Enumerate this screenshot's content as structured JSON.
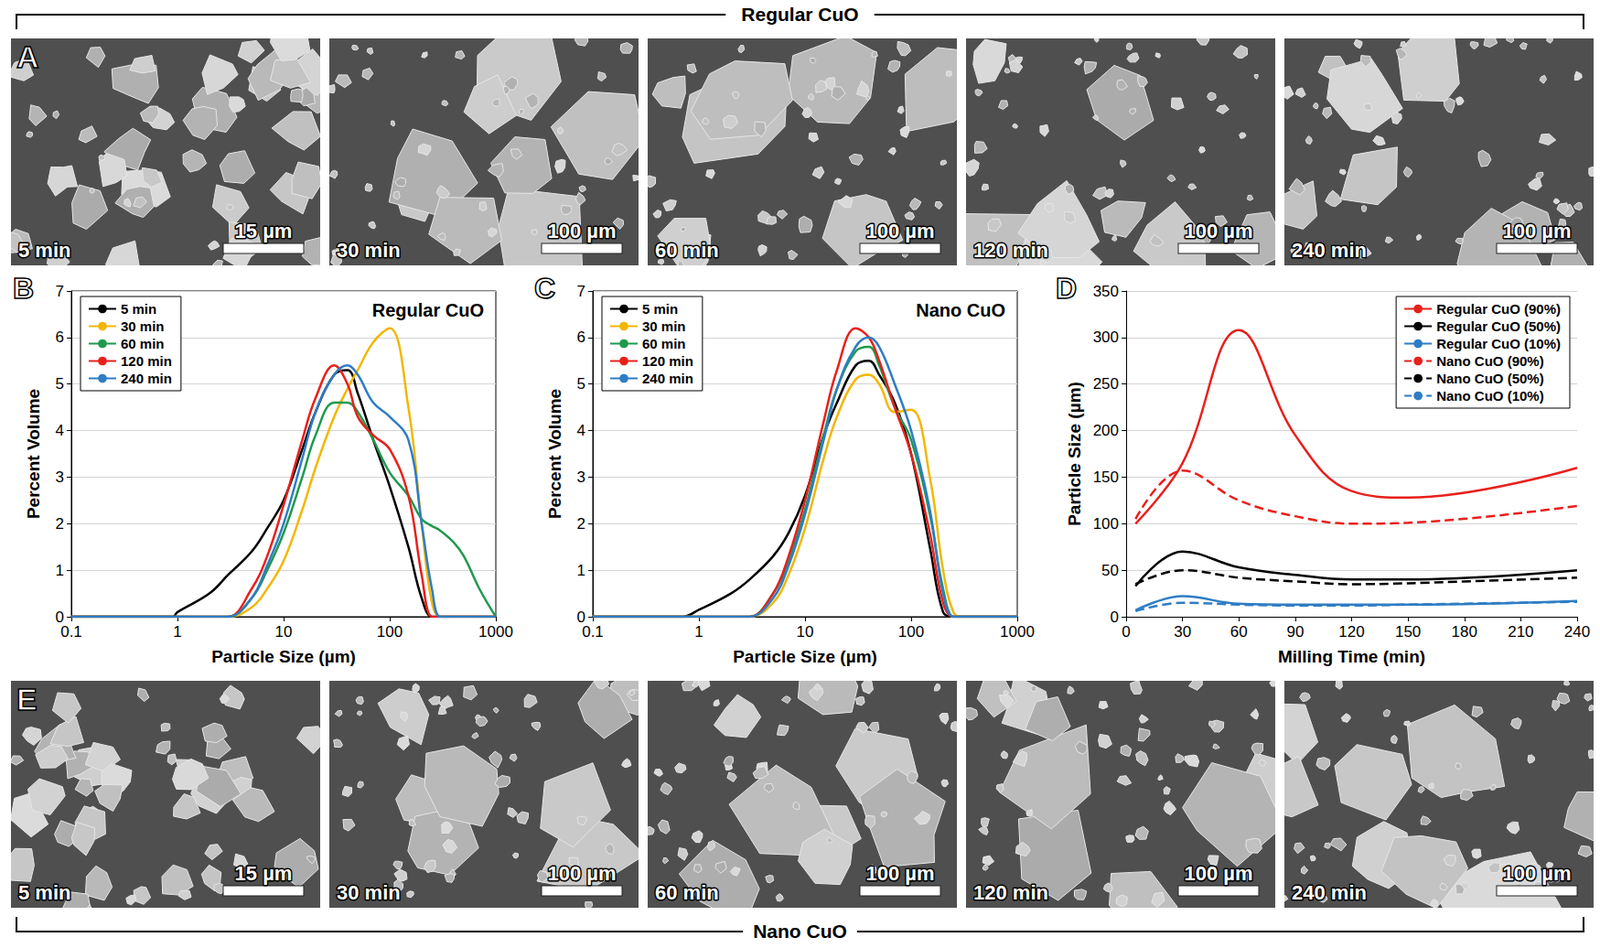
{
  "header": "Regular CuO",
  "footer": "Nano CuO",
  "image_panels": [
    {
      "letter": "A",
      "images": [
        {
          "time": "5 min",
          "scale_bar": "15 µm"
        },
        {
          "time": "30 min",
          "scale_bar": "100 µm"
        },
        {
          "time": "60 min",
          "scale_bar": "100 µm"
        },
        {
          "time": "120 min",
          "scale_bar": "100 µm"
        },
        {
          "time": "240 min",
          "scale_bar": "100 µm"
        }
      ]
    },
    {
      "letter": "E",
      "images": [
        {
          "time": "5 min",
          "scale_bar": "15 µm"
        },
        {
          "time": "30 min",
          "scale_bar": "100 µm"
        },
        {
          "time": "60 min",
          "scale_bar": "100 µm"
        },
        {
          "time": "120 min",
          "scale_bar": "100 µm"
        },
        {
          "time": "240 min",
          "scale_bar": "100 µm"
        }
      ]
    }
  ],
  "chart_data": [
    {
      "panel": "B",
      "type": "line",
      "title": "Regular CuO",
      "x_label": "Particle Size (µm)",
      "y_label": "Percent Volume",
      "log": "x",
      "xlim": [
        0.1,
        1000
      ],
      "xticks": [
        0.1,
        1,
        10,
        100,
        1000
      ],
      "ylim": [
        0,
        7
      ],
      "yticks": [
        0,
        1,
        2,
        3,
        4,
        5,
        6,
        7
      ],
      "grid": true,
      "legend": "top-left",
      "x": [
        0.1,
        0.9,
        1,
        2,
        3,
        5,
        7,
        10,
        15,
        20,
        30,
        40,
        50,
        70,
        100,
        150,
        200,
        250,
        300,
        400,
        500,
        700,
        1000
      ],
      "series": [
        {
          "name": "5 min",
          "color": "#000000",
          "values": [
            0,
            0,
            0.1,
            0.5,
            0.9,
            1.4,
            1.9,
            2.5,
            3.6,
            4.4,
            5.2,
            5.3,
            4.8,
            3.8,
            2.8,
            1.5,
            0.4,
            0,
            0,
            0,
            0,
            0,
            0
          ]
        },
        {
          "name": "30 min",
          "color": "#f2b705",
          "values": [
            0,
            0,
            0,
            0,
            0,
            0.2,
            0.6,
            1.2,
            2.3,
            3.2,
            4.3,
            4.9,
            5.3,
            5.9,
            6.2,
            4.5,
            2.0,
            0.3,
            0,
            0,
            0,
            0,
            0
          ]
        },
        {
          "name": "60 min",
          "color": "#1f9a4e",
          "values": [
            0,
            0,
            0,
            0,
            0,
            0.4,
            1.0,
            1.8,
            3.0,
            3.9,
            4.6,
            4.6,
            4.4,
            3.8,
            3.1,
            2.6,
            2.1,
            1.95,
            1.85,
            1.6,
            1.3,
            0.6,
            0
          ]
        },
        {
          "name": "120 min",
          "color": "#e8201c",
          "values": [
            0,
            0,
            0,
            0,
            0,
            0.6,
            1.3,
            2.4,
            3.8,
            4.7,
            5.4,
            5.0,
            4.3,
            3.9,
            3.6,
            2.6,
            0.9,
            0,
            0,
            0,
            0,
            0,
            0
          ]
        },
        {
          "name": "240 min",
          "color": "#2e7dc4",
          "values": [
            0,
            0,
            0,
            0,
            0,
            0.4,
            1.1,
            2.0,
            3.4,
            4.4,
            5.2,
            5.4,
            5.2,
            4.6,
            4.3,
            3.8,
            2.0,
            0.6,
            0,
            0,
            0,
            0,
            0
          ]
        }
      ]
    },
    {
      "panel": "C",
      "type": "line",
      "title": "Nano CuO",
      "x_label": "Particle Size (µm)",
      "y_label": "Percent Volume",
      "log": "x",
      "xlim": [
        0.1,
        1000
      ],
      "xticks": [
        0.1,
        1,
        10,
        100,
        1000
      ],
      "ylim": [
        0,
        7
      ],
      "yticks": [
        0,
        1,
        2,
        3,
        4,
        5,
        6,
        7
      ],
      "grid": true,
      "legend": "top-left",
      "x": [
        0.1,
        0.7,
        1,
        2,
        3,
        5,
        7,
        10,
        15,
        20,
        30,
        40,
        50,
        70,
        100,
        150,
        200,
        250,
        300,
        1000
      ],
      "series": [
        {
          "name": "5 min",
          "color": "#000000",
          "values": [
            0,
            0,
            0.15,
            0.5,
            0.8,
            1.3,
            1.8,
            2.6,
            3.9,
            4.6,
            5.4,
            5.5,
            5.2,
            4.6,
            3.5,
            1.5,
            0.1,
            0,
            0,
            0
          ]
        },
        {
          "name": "30 min",
          "color": "#f2b705",
          "values": [
            0,
            0,
            0,
            0,
            0,
            0.3,
            0.9,
            1.9,
            3.4,
            4.3,
            5.1,
            5.2,
            5.0,
            4.4,
            4.45,
            3.0,
            1.0,
            0.1,
            0,
            0
          ]
        },
        {
          "name": "60 min",
          "color": "#1f9a4e",
          "values": [
            0,
            0,
            0,
            0,
            0,
            0.5,
            1.2,
            2.3,
            3.9,
            4.9,
            5.7,
            5.8,
            5.4,
            4.5,
            3.8,
            2.2,
            0.6,
            0,
            0,
            0
          ]
        },
        {
          "name": "120 min",
          "color": "#e8201c",
          "values": [
            0,
            0,
            0,
            0,
            0,
            0.5,
            1.3,
            2.5,
            4.2,
            5.3,
            6.2,
            6.0,
            5.5,
            4.5,
            3.5,
            1.8,
            0.3,
            0,
            0,
            0
          ]
        },
        {
          "name": "240 min",
          "color": "#2e7dc4",
          "values": [
            0,
            0,
            0,
            0,
            0,
            0.4,
            1.1,
            2.2,
            3.8,
            4.9,
            5.8,
            6.0,
            5.8,
            5.0,
            4.0,
            2.3,
            0.5,
            0,
            0,
            0
          ]
        }
      ]
    },
    {
      "panel": "D",
      "type": "line",
      "x_label": "Milling Time (min)",
      "y_label": "Particle Size (µm)",
      "xlim": [
        0,
        240
      ],
      "xticks": [
        0,
        30,
        60,
        90,
        120,
        150,
        180,
        210,
        240
      ],
      "ylim": [
        0,
        350
      ],
      "yticks": [
        0,
        50,
        100,
        150,
        200,
        250,
        300,
        350
      ],
      "grid": true,
      "legend": "top-right",
      "x": [
        5,
        30,
        60,
        90,
        120,
        150,
        240
      ],
      "series": [
        {
          "name": "Regular CuO (90%)",
          "color": "#e8201c",
          "line_style": "solid",
          "values": [
            100,
            165,
            308,
            195,
            135,
            128,
            160
          ]
        },
        {
          "name": "Regular CuO (50%)",
          "color": "#000000",
          "line_style": "solid",
          "values": [
            33,
            70,
            53,
            45,
            40,
            40,
            50
          ]
        },
        {
          "name": "Regular CuO (10%)",
          "color": "#2e7dc4",
          "line_style": "solid",
          "values": [
            7,
            22,
            14,
            13,
            13,
            13,
            17
          ]
        },
        {
          "name": "Nano CuO (90%)",
          "color": "#e8201c",
          "line_style": "dashed",
          "values": [
            105,
            157,
            125,
            108,
            100,
            101,
            119
          ]
        },
        {
          "name": "Nano CuO (50%)",
          "color": "#000000",
          "line_style": "dashed",
          "values": [
            35,
            50,
            42,
            38,
            35,
            36,
            42
          ]
        },
        {
          "name": "Nano CuO (10%)",
          "color": "#2e7dc4",
          "line_style": "dashed",
          "values": [
            6,
            15,
            13,
            12,
            12,
            13,
            16
          ]
        }
      ]
    }
  ]
}
